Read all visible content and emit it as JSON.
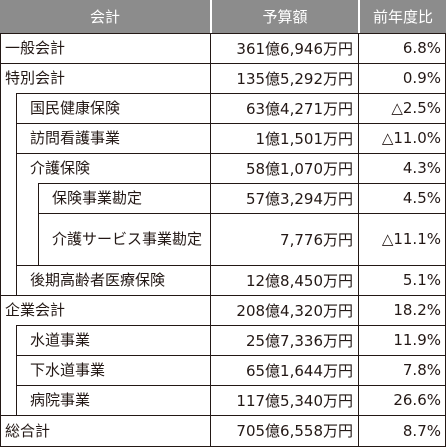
{
  "header": {
    "name": "会計",
    "budget": "予算額",
    "ratio": "前年度比"
  },
  "rows": [
    {
      "name": "一般会計",
      "budget": "361億6,946万円",
      "ratio": "6.8%"
    },
    {
      "name": "特別会計",
      "budget": "135億5,292万円",
      "ratio": "0.9%"
    },
    {
      "name": "国民健康保険",
      "budget": "63億4,271万円",
      "ratio": "△2.5%"
    },
    {
      "name": "訪問看護事業",
      "budget": "1億1,501万円",
      "ratio": "△11.0%"
    },
    {
      "name": "介護保険",
      "budget": "58億1,070万円",
      "ratio": "4.3%"
    },
    {
      "name": "保険事業勘定",
      "budget": "57億3,294万円",
      "ratio": "4.5%"
    },
    {
      "name": "介護サービス事業勘定",
      "budget": "7,776万円",
      "ratio": "△11.1%"
    },
    {
      "name": "後期高齢者医療保険",
      "budget": "12億8,450万円",
      "ratio": "5.1%"
    },
    {
      "name": "企業会計",
      "budget": "208億4,320万円",
      "ratio": "18.2%"
    },
    {
      "name": "水道事業",
      "budget": "25億7,336万円",
      "ratio": "11.9%"
    },
    {
      "name": "下水道事業",
      "budget": "65億1,644万円",
      "ratio": "7.8%"
    },
    {
      "name": "病院事業",
      "budget": "117億5,340万円",
      "ratio": "26.6%"
    },
    {
      "name": "総合計",
      "budget": "705億6,558万円",
      "ratio": "8.7%"
    }
  ]
}
